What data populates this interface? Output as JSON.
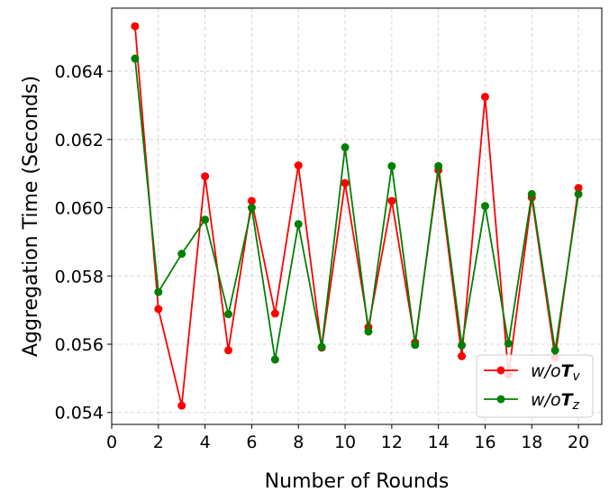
{
  "chart_data": {
    "type": "line",
    "xlabel": "Number of Rounds",
    "ylabel": "Aggregation Time (Seconds)",
    "xlim": [
      0,
      21
    ],
    "ylim": [
      0.05365,
      0.06585
    ],
    "xticks": [
      0,
      2,
      4,
      6,
      8,
      10,
      12,
      14,
      16,
      18,
      20
    ],
    "xtick_labels": [
      "0",
      "2",
      "4",
      "6",
      "8",
      "10",
      "12",
      "14",
      "16",
      "18",
      "20"
    ],
    "yticks": [
      0.054,
      0.056,
      0.058,
      0.06,
      0.062,
      0.064
    ],
    "ytick_labels": [
      "0.054",
      "0.056",
      "0.058",
      "0.060",
      "0.062",
      "0.064"
    ],
    "grid": true,
    "legend_position": "bottom-right",
    "x": [
      1,
      2,
      3,
      4,
      5,
      6,
      7,
      8,
      9,
      10,
      11,
      12,
      13,
      14,
      15,
      16,
      17,
      18,
      19,
      20
    ],
    "series": [
      {
        "name": "w/oT_v",
        "legend_prefix": "w/o",
        "legend_symbol": "T",
        "legend_subscript": "v",
        "color": "#ff0000",
        "values": [
          0.06532,
          0.05703,
          0.0542,
          0.06092,
          0.05582,
          0.0602,
          0.0569,
          0.06124,
          0.0559,
          0.06072,
          0.0565,
          0.0602,
          0.05605,
          0.0611,
          0.05565,
          0.06325,
          0.0551,
          0.0603,
          0.0556,
          0.06058
        ]
      },
      {
        "name": "w/oT_z",
        "legend_prefix": "w/o",
        "legend_symbol": "T",
        "legend_subscript": "z",
        "color": "#008000",
        "values": [
          0.06437,
          0.05753,
          0.05865,
          0.05965,
          0.05688,
          0.06,
          0.05555,
          0.05952,
          0.05592,
          0.06177,
          0.05637,
          0.06122,
          0.05598,
          0.06122,
          0.05597,
          0.06005,
          0.05602,
          0.0604,
          0.05582,
          0.0604
        ]
      }
    ]
  }
}
